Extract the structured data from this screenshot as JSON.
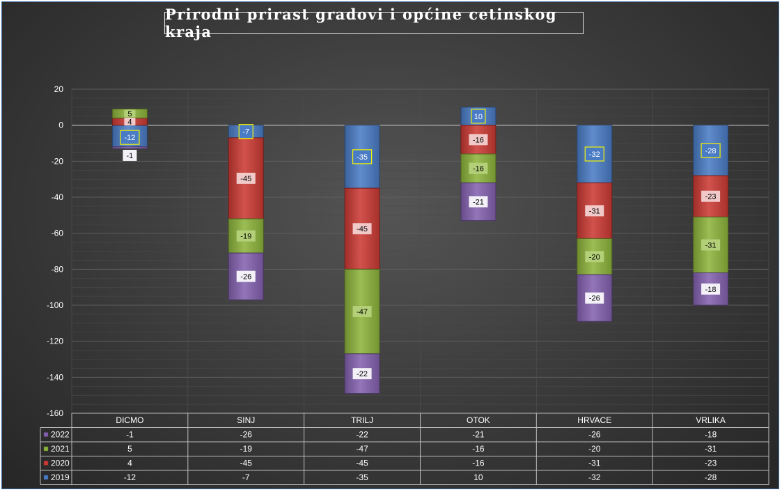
{
  "chart_data": {
    "type": "bar",
    "stacked": true,
    "title": "Prirodni prirast gradovi i općine cetinskog kraja",
    "categories": [
      "DICMO",
      "SINJ",
      "TRILJ",
      "OTOK",
      "HRVACE",
      "VRLIKA"
    ],
    "series": [
      {
        "name": "2019",
        "color": "#4a7cc6",
        "values": [
          -12,
          -7,
          -35,
          10,
          -32,
          -28
        ]
      },
      {
        "name": "2020",
        "color": "#cc3a35",
        "values": [
          4,
          -45,
          -45,
          -16,
          -31,
          -23
        ]
      },
      {
        "name": "2021",
        "color": "#8db43c",
        "values": [
          5,
          -19,
          -47,
          -16,
          -20,
          -31
        ]
      },
      {
        "name": "2022",
        "color": "#8462b0",
        "values": [
          -1,
          -26,
          -22,
          -21,
          -26,
          -18
        ]
      }
    ],
    "table_row_order": [
      "2022",
      "2021",
      "2020",
      "2019"
    ],
    "ylim": [
      -160,
      20
    ],
    "yticks": [
      20,
      0,
      -20,
      -40,
      -60,
      -80,
      -100,
      -120,
      -140,
      -160
    ],
    "grid": true,
    "data_table": true,
    "xlabel": "",
    "ylabel": ""
  }
}
